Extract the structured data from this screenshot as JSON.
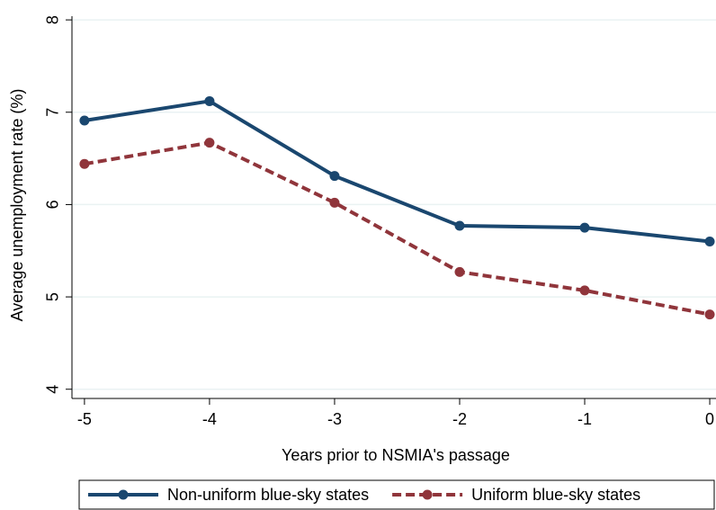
{
  "chart_data": {
    "type": "line",
    "x_label": "Years prior to NSMIA's passage",
    "y_label": "Average unemployment rate (%)",
    "x": [
      -5,
      -4,
      -3,
      -2,
      -1,
      0
    ],
    "series": [
      {
        "name": "Non-uniform blue-sky states",
        "color": "#1a476f",
        "dash": false,
        "values": [
          6.91,
          7.12,
          6.31,
          5.77,
          5.75,
          5.6
        ]
      },
      {
        "name": "Uniform blue-sky states",
        "color": "#90353b",
        "dash": true,
        "values": [
          6.44,
          6.67,
          6.02,
          5.27,
          5.07,
          4.81
        ]
      }
    ],
    "xlim": [
      -5.1,
      0.05
    ],
    "xticks": [
      -5,
      -4,
      -3,
      -2,
      -1,
      0
    ],
    "ylim": [
      3.9,
      8.04
    ],
    "yticks": [
      4,
      5,
      6,
      7,
      8
    ],
    "grid": true,
    "legend": "bottom"
  }
}
